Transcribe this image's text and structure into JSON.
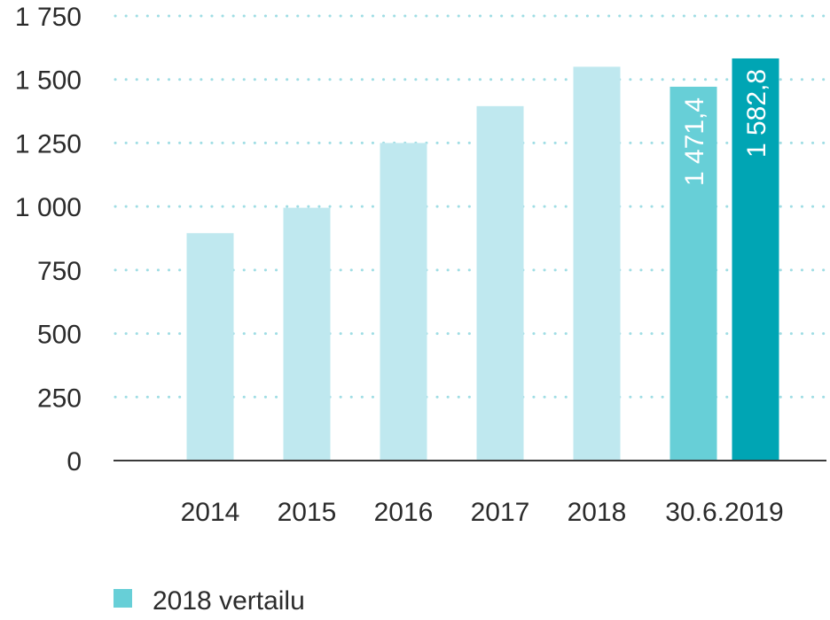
{
  "chart_data": {
    "type": "bar",
    "categories": [
      "2014",
      "2015",
      "2016",
      "2017",
      "2018",
      "30.6.2019"
    ],
    "series": [
      {
        "values": [
          895,
          995,
          1250,
          1395,
          1550,
          1471.4
        ],
        "colors": [
          "#bfe8ef",
          "#bfe8ef",
          "#bfe8ef",
          "#bfe8ef",
          "#bfe8ef",
          "#67cfd7"
        ]
      },
      {
        "values": [
          null,
          null,
          null,
          null,
          null,
          1582.8
        ],
        "colors": [
          "#00a5b4",
          "#00a5b4",
          "#00a5b4",
          "#00a5b4",
          "#00a5b4",
          "#00a5b4"
        ]
      }
    ],
    "data_labels": [
      {
        "category": "30.6.2019",
        "series_index": 0,
        "text": "1 471,4"
      },
      {
        "category": "30.6.2019",
        "series_index": 1,
        "text": "1 582,8"
      }
    ],
    "y_ticks": [
      {
        "value": 0,
        "label": "0"
      },
      {
        "value": 250,
        "label": "250"
      },
      {
        "value": 500,
        "label": "500"
      },
      {
        "value": 750,
        "label": "750"
      },
      {
        "value": 1000,
        "label": "1 000"
      },
      {
        "value": 1250,
        "label": "1 250"
      },
      {
        "value": 1500,
        "label": "1 500"
      },
      {
        "value": 1750,
        "label": "1 750"
      }
    ],
    "ylim": [
      0,
      1750
    ],
    "grid": "dotted-horizontal",
    "legend": {
      "position": "bottom-left",
      "entries": [
        {
          "label": "2018 vertailu",
          "color": "#67cfd7"
        }
      ]
    },
    "colors": {
      "gridline": "#9fdde4",
      "axis": "#3a3a3a",
      "text": "#2b2b2b"
    }
  }
}
